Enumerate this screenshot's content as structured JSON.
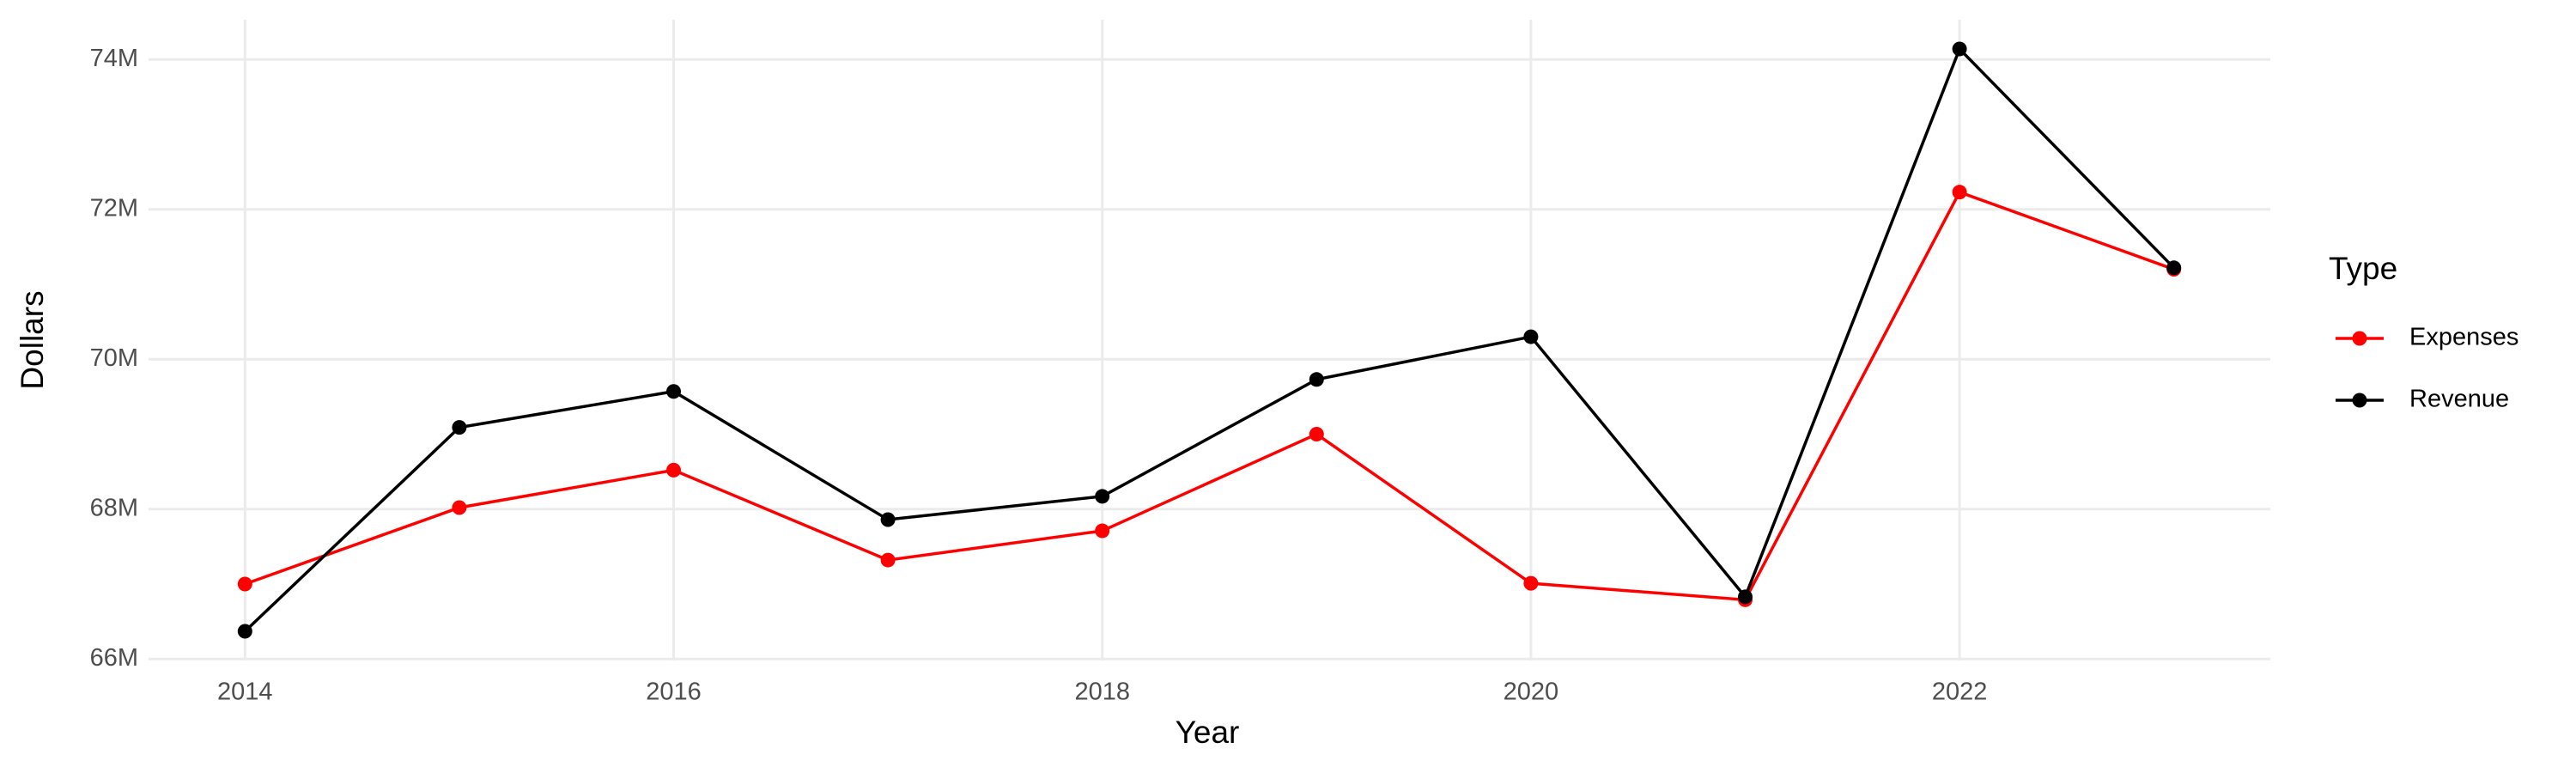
{
  "chart_data": {
    "type": "line",
    "x_label": "Year",
    "y_label": "Dollars",
    "legend_title": "Type",
    "legend": "right",
    "grid": true,
    "x": [
      2014,
      2015,
      2016,
      2017,
      2018,
      2019,
      2020,
      2021,
      2022,
      2023
    ],
    "series": [
      {
        "name": "Expenses",
        "color": "#ff0000",
        "values": [
          67000000,
          68020000,
          68520000,
          67320000,
          67710000,
          69000000,
          67010000,
          66790000,
          72230000,
          71200000
        ]
      },
      {
        "name": "Revenue",
        "color": "#000000",
        "values": [
          66370000,
          69090000,
          69570000,
          67860000,
          68170000,
          69730000,
          70300000,
          66830000,
          74140000,
          71220000
        ]
      }
    ],
    "xlim": [
      2013.55,
      2023.45
    ],
    "xticks": [
      2014,
      2016,
      2018,
      2020,
      2022
    ],
    "ylim": [
      65980000,
      74530000
    ],
    "yticks": [
      {
        "value": 66000000,
        "label": "66M"
      },
      {
        "value": 68000000,
        "label": "68M"
      },
      {
        "value": 70000000,
        "label": "70M"
      },
      {
        "value": 72000000,
        "label": "72M"
      },
      {
        "value": 74000000,
        "label": "74M"
      }
    ]
  }
}
